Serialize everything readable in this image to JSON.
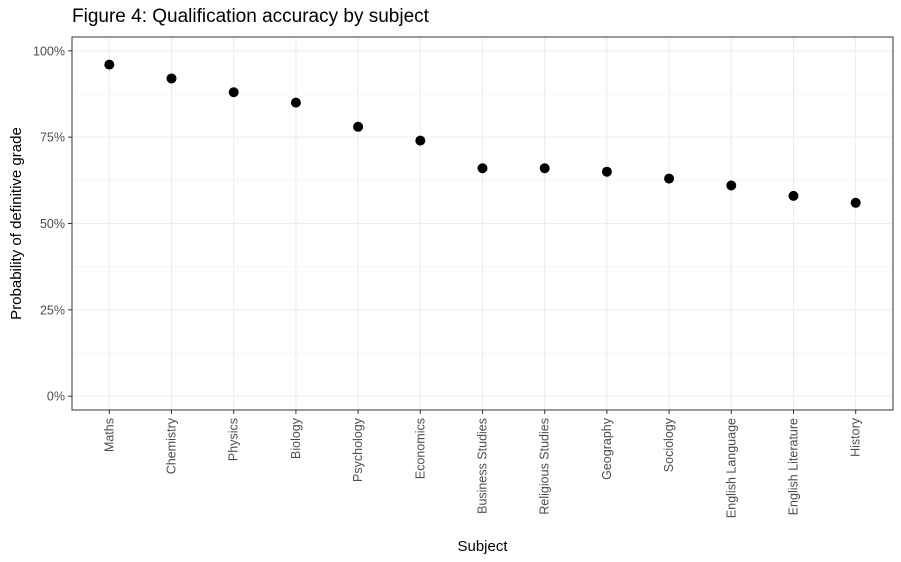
{
  "chart_data": {
    "type": "scatter",
    "title": "Figure 4: Qualification accuracy by subject",
    "xlabel": "Subject",
    "ylabel": "Probability of definitive grade",
    "categories": [
      "Maths",
      "Chemistry",
      "Physics",
      "Biology",
      "Psychology",
      "Economics",
      "Business Studies",
      "Religious Studies",
      "Geography",
      "Sociology",
      "English Language",
      "English Literature",
      "History"
    ],
    "values": [
      0.96,
      0.92,
      0.88,
      0.85,
      0.78,
      0.74,
      0.66,
      0.66,
      0.65,
      0.63,
      0.61,
      0.58,
      0.56
    ],
    "ylim": [
      -0.04,
      1.04
    ],
    "yticks": [
      0,
      0.25,
      0.5,
      0.75,
      1.0
    ],
    "ytick_labels": [
      "0%",
      "25%",
      "50%",
      "75%",
      "100%"
    ],
    "grid": true,
    "point_color": "#000000"
  }
}
